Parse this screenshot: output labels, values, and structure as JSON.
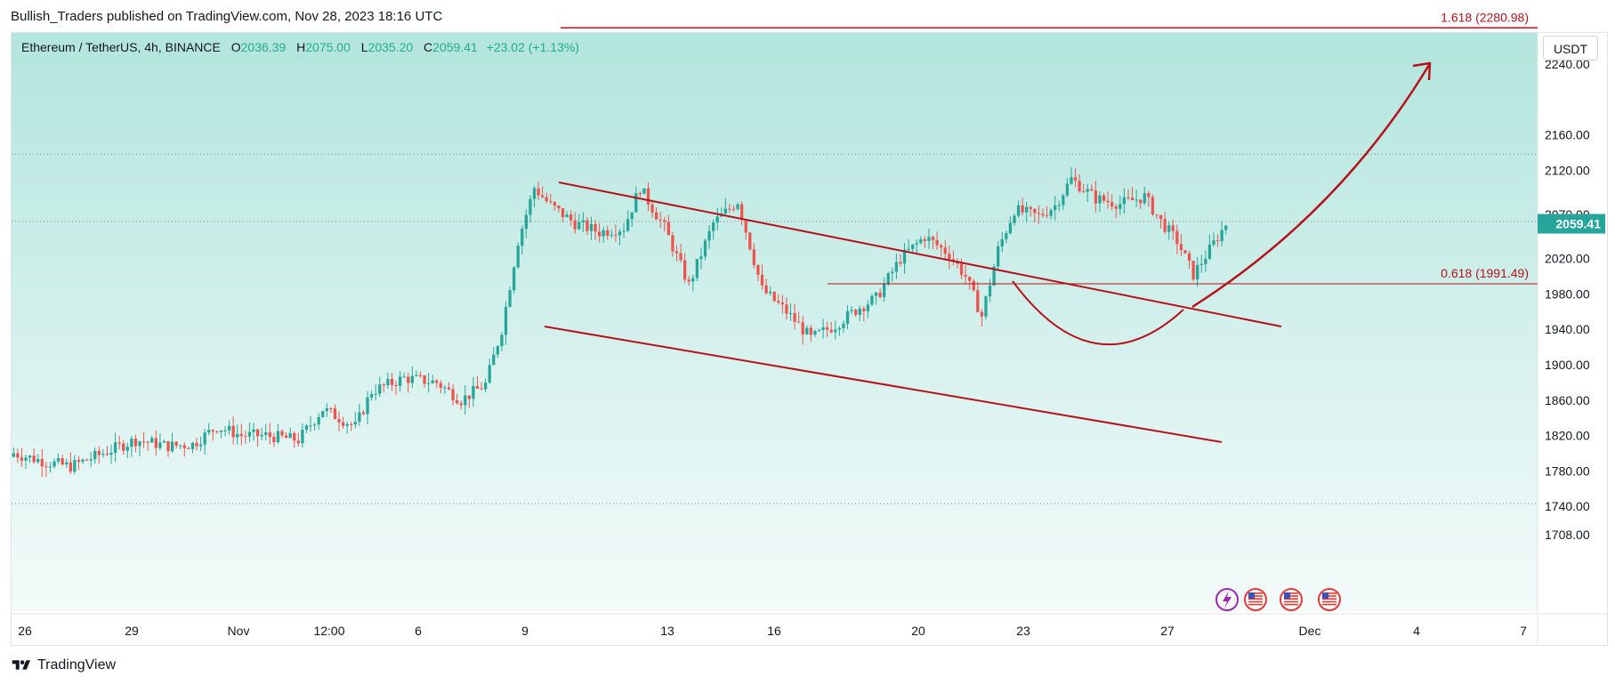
{
  "header": {
    "publish_line": "Bullish_Traders published on TradingView.com, Nov 28, 2023 18:16 UTC"
  },
  "legend": {
    "symbol": "Ethereum / TetherUS, 4h, BINANCE",
    "open_label": "O",
    "open": "2036.39",
    "high_label": "H",
    "high": "2075.00",
    "low_label": "L",
    "low": "2035.20",
    "close_label": "C",
    "close": "2059.41",
    "change": "+23.02 (+1.13%)"
  },
  "currency_button": "USDT",
  "footer": {
    "brand": "TradingView"
  },
  "colors": {
    "up": "#26a69a",
    "down": "#ef5350",
    "annotation": "#b5121b",
    "bg_top": "#b2e5dd",
    "bg_bottom": "#f4fbfa",
    "price_label_bg": "#26a69a"
  },
  "chart_data": {
    "type": "candlestick",
    "title": "Ethereum / TetherUS, 4h, BINANCE",
    "ylim": [
      1690,
      2290
    ],
    "y_ticks": [
      "2240.00",
      "2160.00",
      "2120.00",
      "2070.00",
      "2020.00",
      "1980.00",
      "1940.00",
      "1900.00",
      "1860.00",
      "1820.00",
      "1780.00",
      "1740.00",
      "1708.00"
    ],
    "x_labels": [
      "26",
      "29",
      "Nov",
      "12:00",
      "6",
      "9",
      "13",
      "16",
      "20",
      "23",
      "27",
      "Dec",
      "4",
      "7"
    ],
    "last_price": "2059.41",
    "fib_levels": [
      {
        "label": "1.618 (2280.98)",
        "value": 2280.98
      },
      {
        "label": "0.618 (1991.49)",
        "value": 1991.49
      }
    ],
    "horizontal_dotted_levels": [
      2138,
      2062,
      1743
    ],
    "event_icons": [
      "lightning-icon",
      "us-flag-icon",
      "us-flag-icon",
      "us-flag-stack-icon"
    ],
    "annotations": [
      "descending-channel",
      "cup-curve",
      "projected-arrow-to-1.618"
    ],
    "candles_anchor_closes": [
      [
        0,
        1800
      ],
      [
        8,
        1790
      ],
      [
        14,
        1785
      ],
      [
        22,
        1800
      ],
      [
        30,
        1815
      ],
      [
        38,
        1808
      ],
      [
        44,
        1810
      ],
      [
        50,
        1830
      ],
      [
        56,
        1820
      ],
      [
        62,
        1820
      ],
      [
        70,
        1815
      ],
      [
        76,
        1850
      ],
      [
        84,
        1830
      ],
      [
        88,
        1870
      ],
      [
        96,
        1885
      ],
      [
        104,
        1880
      ],
      [
        110,
        1860
      ],
      [
        116,
        1878
      ],
      [
        120,
        1940
      ],
      [
        124,
        2040
      ],
      [
        128,
        2100
      ],
      [
        132,
        2080
      ],
      [
        138,
        2060
      ],
      [
        144,
        2050
      ],
      [
        150,
        2055
      ],
      [
        154,
        2100
      ],
      [
        160,
        2055
      ],
      [
        166,
        1990
      ],
      [
        172,
        2060
      ],
      [
        178,
        2085
      ],
      [
        184,
        1985
      ],
      [
        190,
        1960
      ],
      [
        196,
        1930
      ],
      [
        202,
        1945
      ],
      [
        208,
        1965
      ],
      [
        212,
        1975
      ],
      [
        218,
        2020
      ],
      [
        224,
        2045
      ],
      [
        230,
        2025
      ],
      [
        234,
        2000
      ],
      [
        238,
        1955
      ],
      [
        242,
        2030
      ],
      [
        246,
        2075
      ],
      [
        252,
        2068
      ],
      [
        256,
        2080
      ],
      [
        260,
        2110
      ],
      [
        266,
        2088
      ],
      [
        272,
        2082
      ],
      [
        278,
        2090
      ],
      [
        282,
        2062
      ],
      [
        286,
        2040
      ],
      [
        290,
        2002
      ],
      [
        294,
        2030
      ],
      [
        298,
        2059
      ]
    ]
  }
}
